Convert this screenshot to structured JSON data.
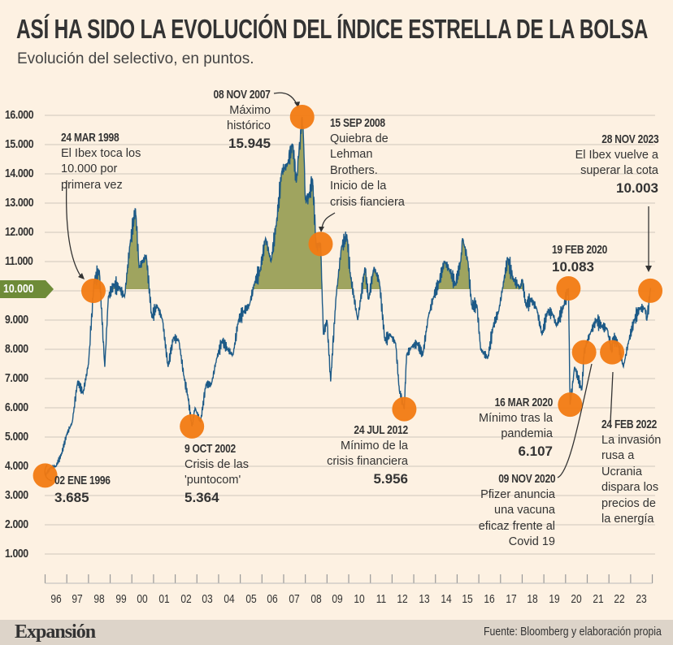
{
  "title": "ASÍ HA SIDO LA EVOLUCIÓN DEL ÍNDICE ESTRELLA DE LA BOLSA",
  "subtitle": "Evolución del selectivo, en puntos.",
  "footer": {
    "logo": "Expansión",
    "source": "Fuente: Bloomberg y elaboración propia"
  },
  "colors": {
    "background": "#fdf1e2",
    "line": "#1d5a87",
    "area_above_ref": "#9fa45f",
    "marker": "#f27a12",
    "ref_tag": "#6e8b38",
    "grid": "#e6dccf",
    "footer": "#ddd4c9"
  },
  "chart_data": {
    "type": "line",
    "title": "ASÍ HA SIDO LA EVOLUCIÓN DEL ÍNDICE ESTRELLA DE LA BOLSA",
    "subtitle": "Evolución del selectivo, en puntos.",
    "ylim": [
      0,
      16000
    ],
    "yticks": [
      "1.000",
      "2.000",
      "3.000",
      "4.000",
      "5.000",
      "6.000",
      "7.000",
      "8.000",
      "9.000",
      "10.000",
      "11.000",
      "12.000",
      "13.000",
      "14.000",
      "15.000",
      "16.000"
    ],
    "ytick_values": [
      1000,
      2000,
      3000,
      4000,
      5000,
      6000,
      7000,
      8000,
      9000,
      10000,
      11000,
      12000,
      13000,
      14000,
      15000,
      16000
    ],
    "xticks": [
      "96",
      "97",
      "98",
      "99",
      "00",
      "01",
      "02",
      "03",
      "04",
      "05",
      "06",
      "07",
      "08",
      "09",
      "10",
      "11",
      "12",
      "13",
      "14",
      "15",
      "16",
      "17",
      "18",
      "19",
      "20",
      "21",
      "22",
      "23"
    ],
    "xlim": [
      "1996-01-01",
      "2023-12-31"
    ],
    "grid": true,
    "reference_line": {
      "value": 10000,
      "label": "10.000",
      "fill_above": true
    },
    "series": [
      {
        "points": [
          [
            "1996-01-02",
            3685
          ],
          [
            "1996-04",
            3950
          ],
          [
            "1996-07",
            4000
          ],
          [
            "1996-10",
            4400
          ],
          [
            "1997-01",
            5100
          ],
          [
            "1997-04",
            5500
          ],
          [
            "1997-07",
            6900
          ],
          [
            "1997-10",
            6500
          ],
          [
            "1998-01",
            7500
          ],
          [
            "1998-03-24",
            10000
          ],
          [
            "1998-04",
            10300
          ],
          [
            "1998-07",
            10700
          ],
          [
            "1998-10",
            7400
          ],
          [
            "1998-12",
            9800
          ],
          [
            "1999-03",
            10200
          ],
          [
            "1999-06",
            10100
          ],
          [
            "1999-09",
            9800
          ],
          [
            "1999-12",
            11600
          ],
          [
            "2000-03",
            12800
          ],
          [
            "2000-05",
            10800
          ],
          [
            "2000-09",
            11200
          ],
          [
            "2000-12",
            9100
          ],
          [
            "2001-03",
            9500
          ],
          [
            "2001-06",
            9000
          ],
          [
            "2001-09",
            7400
          ],
          [
            "2001-12",
            8400
          ],
          [
            "2002-03",
            8300
          ],
          [
            "2002-06",
            7000
          ],
          [
            "2002-08",
            6400
          ],
          [
            "2002-10-09",
            5364
          ],
          [
            "2002-12",
            6000
          ],
          [
            "2003-03",
            5500
          ],
          [
            "2003-06",
            6800
          ],
          [
            "2003-09",
            6800
          ],
          [
            "2003-12",
            7700
          ],
          [
            "2004-03",
            8300
          ],
          [
            "2004-06",
            8000
          ],
          [
            "2004-09",
            7800
          ],
          [
            "2004-12",
            9000
          ],
          [
            "2005-03",
            9300
          ],
          [
            "2005-06",
            9500
          ],
          [
            "2005-09",
            10300
          ],
          [
            "2005-12",
            10700
          ],
          [
            "2006-03",
            11800
          ],
          [
            "2006-06",
            11000
          ],
          [
            "2006-09",
            12300
          ],
          [
            "2006-12",
            14100
          ],
          [
            "2007-03",
            14300
          ],
          [
            "2007-06",
            15000
          ],
          [
            "2007-08",
            13700
          ],
          [
            "2007-11-08",
            15945
          ],
          [
            "2007-12",
            15200
          ],
          [
            "2008-01",
            13100
          ],
          [
            "2008-03",
            13200
          ],
          [
            "2008-05",
            13800
          ],
          [
            "2008-07",
            11500
          ],
          [
            "2008-09-15",
            11600
          ],
          [
            "2008-11",
            8500
          ],
          [
            "2009-01",
            9000
          ],
          [
            "2009-03",
            6900
          ],
          [
            "2009-06",
            9800
          ],
          [
            "2009-09",
            11500
          ],
          [
            "2009-12",
            11900
          ],
          [
            "2010-02",
            10500
          ],
          [
            "2010-06",
            9000
          ],
          [
            "2010-10",
            10800
          ],
          [
            "2010-12",
            9700
          ],
          [
            "2011-03",
            10800
          ],
          [
            "2011-06",
            10300
          ],
          [
            "2011-09",
            8300
          ],
          [
            "2011-12",
            8500
          ],
          [
            "2012-03",
            8200
          ],
          [
            "2012-05",
            6600
          ],
          [
            "2012-07-24",
            5956
          ],
          [
            "2012-09",
            7800
          ],
          [
            "2012-12",
            8100
          ],
          [
            "2013-03",
            8200
          ],
          [
            "2013-06",
            7800
          ],
          [
            "2013-09",
            9100
          ],
          [
            "2013-12",
            9800
          ],
          [
            "2014-03",
            10300
          ],
          [
            "2014-06",
            11000
          ],
          [
            "2014-09",
            10700
          ],
          [
            "2014-12",
            10200
          ],
          [
            "2015-03",
            11000
          ],
          [
            "2015-04",
            11800
          ],
          [
            "2015-07",
            11000
          ],
          [
            "2015-09",
            9500
          ],
          [
            "2015-12",
            9500
          ],
          [
            "2016-02",
            8000
          ],
          [
            "2016-06",
            7700
          ],
          [
            "2016-09",
            8800
          ],
          [
            "2016-12",
            9300
          ],
          [
            "2017-03",
            10400
          ],
          [
            "2017-05",
            11100
          ],
          [
            "2017-08",
            10400
          ],
          [
            "2017-12",
            10100
          ],
          [
            "2018-01",
            10400
          ],
          [
            "2018-03",
            9500
          ],
          [
            "2018-06",
            9700
          ],
          [
            "2018-09",
            9400
          ],
          [
            "2018-12",
            8500
          ],
          [
            "2019-03",
            9300
          ],
          [
            "2019-06",
            9200
          ],
          [
            "2019-08",
            8800
          ],
          [
            "2019-12",
            9500
          ],
          [
            "2020-02-19",
            10083
          ],
          [
            "2020-03-16",
            6107
          ],
          [
            "2020-06",
            7400
          ],
          [
            "2020-10",
            6600
          ],
          [
            "2020-11-09",
            7900
          ],
          [
            "2020-12",
            8100
          ],
          [
            "2021-03",
            8600
          ],
          [
            "2021-06",
            9000
          ],
          [
            "2021-09",
            8800
          ],
          [
            "2021-12",
            8700
          ],
          [
            "2022-02-24",
            7900
          ],
          [
            "2022-03",
            8400
          ],
          [
            "2022-06",
            8200
          ],
          [
            "2022-09",
            7400
          ],
          [
            "2022-12",
            8300
          ],
          [
            "2023-03",
            9000
          ],
          [
            "2023-06",
            9400
          ],
          [
            "2023-09",
            9400
          ],
          [
            "2023-10",
            9000
          ],
          [
            "2023-11-28",
            10003
          ],
          [
            "2023-12",
            10100
          ]
        ]
      }
    ],
    "annotations": [
      {
        "date": "02 ENE 1996",
        "iso": "1996-01-02",
        "lines": [],
        "value": "3.685"
      },
      {
        "date": "24 MAR 1998",
        "iso": "1998-03-24",
        "lines": [
          "El Ibex toca los",
          "10.000 por",
          "primera vez"
        ],
        "value": ""
      },
      {
        "date": "9 OCT 2002",
        "iso": "2002-10-09",
        "lines": [
          "Crisis de las",
          "'puntocom'"
        ],
        "value": "5.364"
      },
      {
        "date": "08 NOV 2007",
        "iso": "2007-11-08",
        "lines": [
          "Máximo",
          "histórico"
        ],
        "value": "15.945"
      },
      {
        "date": "15 SEP 2008",
        "iso": "2008-09-15",
        "lines": [
          "Quiebra de",
          "Lehman",
          "Brothers.",
          "Inicio de la",
          "crisis fianciera"
        ],
        "value": ""
      },
      {
        "date": "24 JUL 2012",
        "iso": "2012-07-24",
        "lines": [
          "Mínimo de la",
          "crisis financiera"
        ],
        "value": "5.956"
      },
      {
        "date": "19 FEB 2020",
        "iso": "2020-02-19",
        "lines": [],
        "value": "10.083"
      },
      {
        "date": "16 MAR 2020",
        "iso": "2020-03-16",
        "lines": [
          "Mínimo tras la",
          "pandemia"
        ],
        "value": "6.107"
      },
      {
        "date": "09 NOV 2020",
        "iso": "2020-11-09",
        "lines": [
          "Pfizer anuncia",
          "una vacuna",
          "eficaz frente al",
          "Covid 19"
        ],
        "value": ""
      },
      {
        "date": "24 FEB 2022",
        "iso": "2022-02-24",
        "lines": [
          "La invasión",
          "rusa a",
          "Ucrania",
          "dispara los",
          "precios de",
          "la energía"
        ],
        "value": ""
      },
      {
        "date": "28 NOV 2023",
        "iso": "2023-11-28",
        "lines": [
          "El Ibex vuelve a",
          "superar la cota"
        ],
        "value": "10.003"
      }
    ]
  }
}
